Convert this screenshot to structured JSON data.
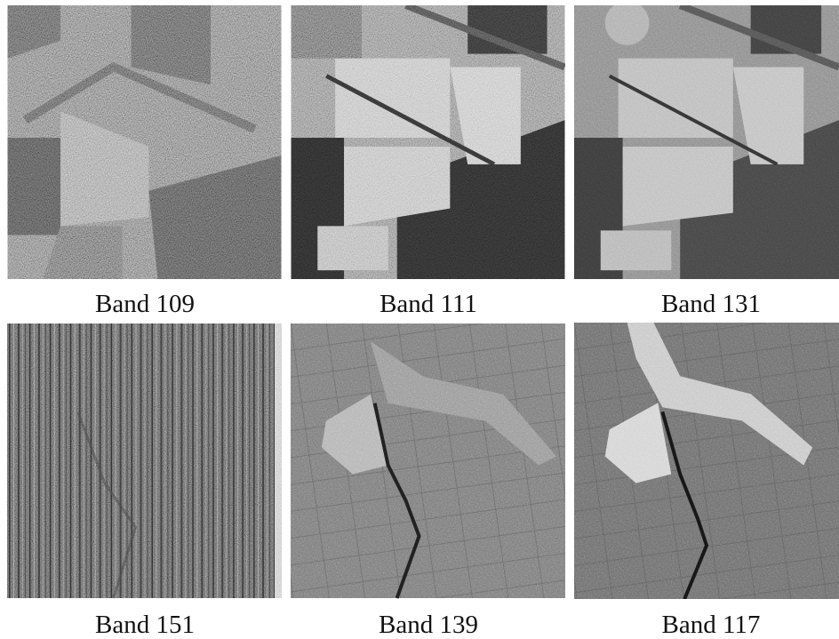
{
  "panels": [
    {
      "caption": "Band 109"
    },
    {
      "caption": "Band 111"
    },
    {
      "caption": "Band 131"
    },
    {
      "caption": "Band 151"
    },
    {
      "caption": "Band 139"
    },
    {
      "caption": "Band 117"
    }
  ]
}
